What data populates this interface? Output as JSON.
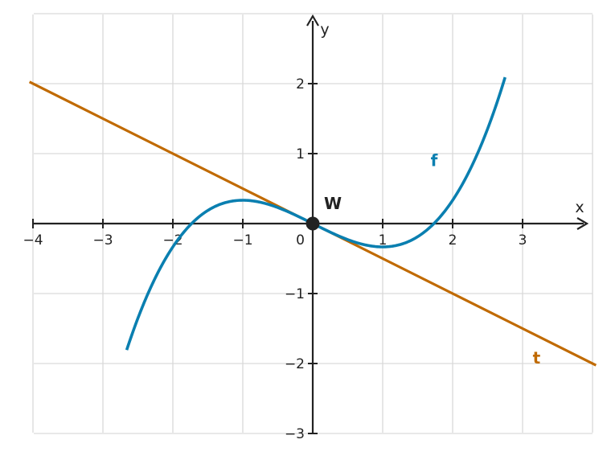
{
  "chart_data": {
    "type": "line",
    "xlabel": "x",
    "ylabel": "y",
    "xlim": [
      -4,
      4
    ],
    "ylim": [
      -3,
      3
    ],
    "grid": true,
    "x_ticks": [
      -4,
      -3,
      -2,
      -1,
      1,
      2,
      3
    ],
    "x_tick_labels": [
      "−4",
      "−3",
      "−2",
      "−1",
      "1",
      "2",
      "3"
    ],
    "y_ticks": [
      -3,
      -2,
      -1,
      1,
      2
    ],
    "y_tick_labels": [
      "−3",
      "−2",
      "−1",
      "1",
      "2"
    ],
    "origin_label": "0",
    "series": [
      {
        "name": "f",
        "color": "#0a7fb0",
        "function": "x^3/6 - x/2",
        "x": [
          -2.66,
          -2.5,
          -2,
          -1.5,
          -1,
          -0.5,
          0,
          0.5,
          1,
          1.5,
          2,
          2.5,
          2.75
        ],
        "y": [
          -1.81,
          -1.35,
          -0.33,
          0.19,
          0.33,
          0.23,
          0,
          -0.23,
          -0.33,
          -0.19,
          0.33,
          1.35,
          2.09
        ]
      },
      {
        "name": "t",
        "color": "#c06a00",
        "function": "-x/2",
        "x": [
          -4,
          4
        ],
        "y": [
          2,
          -2
        ]
      }
    ],
    "points": [
      {
        "label": "W",
        "x": 0,
        "y": 0,
        "color": "#222222"
      }
    ]
  }
}
